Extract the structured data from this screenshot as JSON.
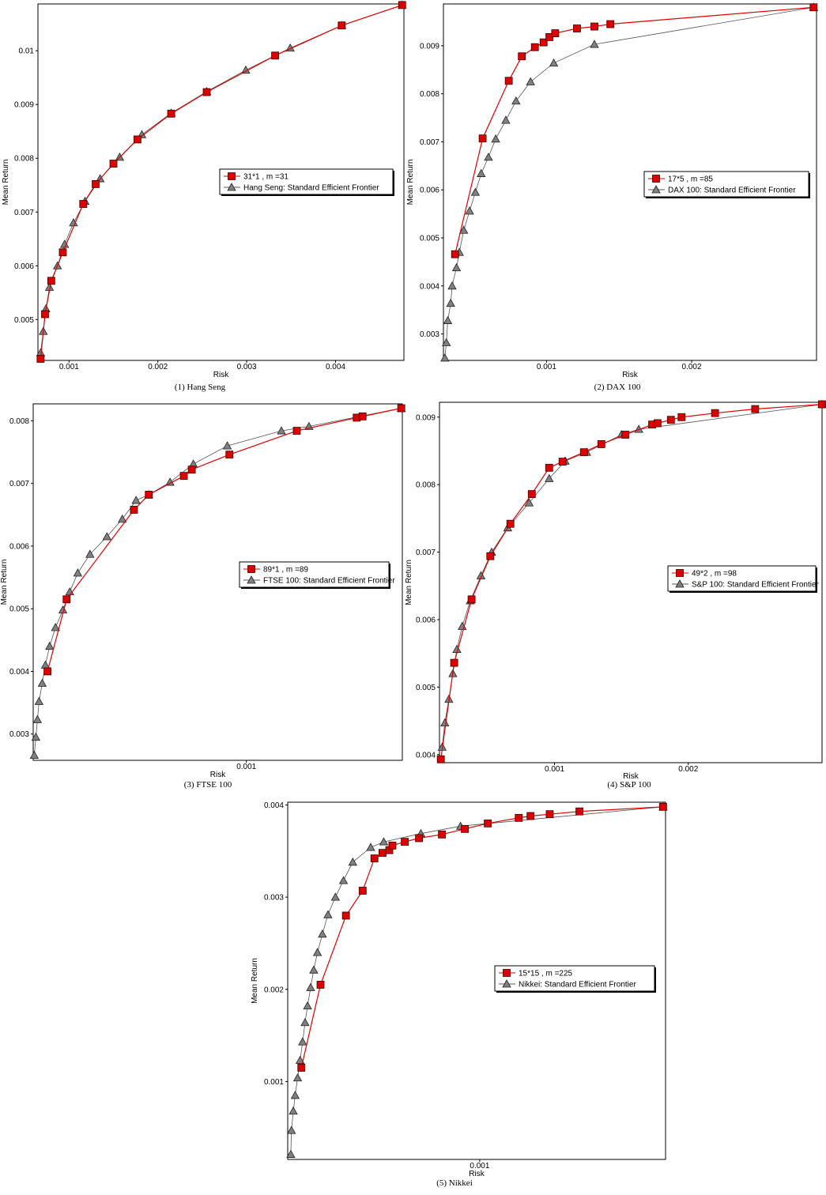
{
  "colors": {
    "optimal": "#dd0000",
    "frontier": "#808080",
    "frontier_line": "#555555"
  },
  "chart_data": [
    {
      "type": "line",
      "caption": "(1) Hang Seng",
      "xlabel": "Risk",
      "ylabel": "Mean Return",
      "xlim": [
        0.00065,
        0.00477
      ],
      "ylim": [
        0.00424,
        0.01087
      ],
      "xticks": [
        {
          "v": 0.001,
          "label": "0.001"
        },
        {
          "v": 0.002,
          "label": "0.002"
        },
        {
          "v": 0.003,
          "label": "0.003"
        },
        {
          "v": 0.004,
          "label": "0.004"
        }
      ],
      "yticks": [
        {
          "v": 0.005,
          "label": "0.005"
        },
        {
          "v": 0.006,
          "label": "0.006"
        },
        {
          "v": 0.007,
          "label": "0.007"
        },
        {
          "v": 0.008,
          "label": "0.008"
        },
        {
          "v": 0.009,
          "label": "0.009"
        },
        {
          "v": 0.01,
          "label": "0.01"
        }
      ],
      "legend_position": "middle-right",
      "series": [
        {
          "name": "31*1 , m =31",
          "marker": "square",
          "x": [
            0.00068,
            0.00073,
            0.0008,
            0.00093,
            0.00116,
            0.0013,
            0.0015,
            0.00177,
            0.00215,
            0.00255,
            0.00332,
            0.00407,
            0.00475
          ],
          "y": [
            0.00427,
            0.0051,
            0.00572,
            0.00625,
            0.00715,
            0.00752,
            0.0079,
            0.00835,
            0.00883,
            0.00923,
            0.00991,
            0.01047,
            0.01085
          ]
        },
        {
          "name": "Hang Seng: Standard Efficient Frontier",
          "marker": "triangle",
          "x": [
            0.00068,
            0.00071,
            0.00074,
            0.00078,
            0.00087,
            0.00095,
            0.00105,
            0.00118,
            0.00135,
            0.00157,
            0.00182,
            0.00215,
            0.00255,
            0.00299,
            0.00349,
            0.00407,
            0.00475
          ],
          "y": [
            0.00438,
            0.00478,
            0.0052,
            0.0056,
            0.006,
            0.0064,
            0.0068,
            0.0072,
            0.00762,
            0.00802,
            0.00844,
            0.00884,
            0.00924,
            0.00964,
            0.01005,
            0.01047,
            0.01085
          ]
        }
      ]
    },
    {
      "type": "line",
      "caption": "(2) DAX 100",
      "xlabel": "Risk",
      "ylabel": "Mean Return",
      "xlim": [
        0.00029,
        0.00286
      ],
      "ylim": [
        0.00245,
        0.00987
      ],
      "xticks": [
        {
          "v": 0.001,
          "label": "0.001"
        },
        {
          "v": 0.002,
          "label": "0.002"
        }
      ],
      "yticks": [
        {
          "v": 0.003,
          "label": "0.003"
        },
        {
          "v": 0.004,
          "label": "0.004"
        },
        {
          "v": 0.005,
          "label": "0.005"
        },
        {
          "v": 0.006,
          "label": "0.006"
        },
        {
          "v": 0.007,
          "label": "0.007"
        },
        {
          "v": 0.008,
          "label": "0.008"
        },
        {
          "v": 0.009,
          "label": "0.009"
        }
      ],
      "legend_position": "middle-right",
      "series": [
        {
          "name": "17*5 , m =85",
          "marker": "square",
          "x": [
            0.00037,
            0.00056,
            0.00074,
            0.00083,
            0.00092,
            0.00098,
            0.00102,
            0.00106,
            0.00121,
            0.00133,
            0.00144,
            0.00284
          ],
          "y": [
            0.00466,
            0.00707,
            0.00827,
            0.00878,
            0.00897,
            0.00907,
            0.00918,
            0.00926,
            0.00936,
            0.0094,
            0.00945,
            0.0098
          ]
        },
        {
          "name": "DAX 100: Standard Efficient Frontier",
          "marker": "triangle",
          "x": [
            0.0003,
            0.00031,
            0.00032,
            0.00034,
            0.00035,
            0.00038,
            0.0004,
            0.00043,
            0.00047,
            0.00051,
            0.00055,
            0.0006,
            0.00065,
            0.00072,
            0.00079,
            0.00089,
            0.00105,
            0.00133,
            0.00284
          ],
          "y": [
            0.0025,
            0.00282,
            0.00328,
            0.00364,
            0.004,
            0.00438,
            0.0047,
            0.00516,
            0.00556,
            0.00595,
            0.00634,
            0.00668,
            0.00706,
            0.00745,
            0.00785,
            0.00825,
            0.00864,
            0.00903,
            0.0098
          ]
        }
      ]
    },
    {
      "type": "line",
      "caption": "(3) FTSE 100",
      "xlabel": "Risk",
      "ylabel": "Mean Return",
      "xlim": [
        0.000398,
        0.001094
      ],
      "ylim": [
        0.00258,
        0.00827
      ],
      "xticks": [
        {
          "v": 0.0008,
          "label": "0.001"
        }
      ],
      "yticks": [
        {
          "v": 0.003,
          "label": "0.003"
        },
        {
          "v": 0.004,
          "label": "0.004"
        },
        {
          "v": 0.005,
          "label": "0.005"
        },
        {
          "v": 0.006,
          "label": "0.006"
        },
        {
          "v": 0.007,
          "label": "0.007"
        },
        {
          "v": 0.008,
          "label": "0.008"
        }
      ],
      "legend_position": "middle-right",
      "series": [
        {
          "name": "89*1 , m =89",
          "marker": "square",
          "x": [
            0.000425,
            0.000461,
            0.000588,
            0.000616,
            0.000682,
            0.000697,
            0.000768,
            0.000895,
            0.001008,
            0.001019,
            0.001092
          ],
          "y": [
            0.004,
            0.00515,
            0.00658,
            0.00682,
            0.00712,
            0.00722,
            0.00746,
            0.00784,
            0.00805,
            0.00807,
            0.0082
          ]
        },
        {
          "name": "FTSE 100: Standard Efficient Frontier",
          "marker": "triangle",
          "x": [
            0.0004,
            0.000403,
            0.000406,
            0.000409,
            0.000415,
            0.000421,
            0.000429,
            0.00044,
            0.000454,
            0.000467,
            0.000482,
            0.000505,
            0.000537,
            0.000566,
            0.000592,
            0.000616,
            0.000656,
            0.0007,
            0.000764,
            0.000866,
            0.000918,
            0.001092
          ],
          "y": [
            0.00266,
            0.00295,
            0.00323,
            0.00352,
            0.00381,
            0.0041,
            0.0044,
            0.0047,
            0.00498,
            0.00527,
            0.00557,
            0.00587,
            0.00615,
            0.00643,
            0.00673,
            0.00682,
            0.00702,
            0.00731,
            0.0076,
            0.00784,
            0.00791,
            0.0082
          ]
        }
      ]
    },
    {
      "type": "line",
      "caption": "(4) S&P 100",
      "xlabel": "Risk",
      "ylabel": "Mean Return",
      "xlim": [
        0.00014,
        0.003
      ],
      "ylim": [
        0.00388,
        0.00922
      ],
      "xticks": [
        {
          "v": 0.001,
          "label": "0.001"
        },
        {
          "v": 0.002,
          "label": "0.002"
        }
      ],
      "yticks": [
        {
          "v": 0.004,
          "label": "0.004"
        },
        {
          "v": 0.005,
          "label": "0.005"
        },
        {
          "v": 0.006,
          "label": "0.006"
        },
        {
          "v": 0.007,
          "label": "0.007"
        },
        {
          "v": 0.008,
          "label": "0.008"
        },
        {
          "v": 0.009,
          "label": "0.009"
        }
      ],
      "legend_position": "middle-right",
      "series": [
        {
          "name": "49*2 , m =98",
          "marker": "square",
          "x": [
            0.00015,
            0.00025,
            0.00038,
            0.00052,
            0.00067,
            0.00083,
            0.00096,
            0.00106,
            0.00122,
            0.00135,
            0.00153,
            0.00173,
            0.00177,
            0.00187,
            0.00195,
            0.0022,
            0.0025,
            0.003
          ],
          "y": [
            0.00393,
            0.00536,
            0.0063,
            0.00694,
            0.00742,
            0.00786,
            0.00825,
            0.00834,
            0.00848,
            0.0086,
            0.00874,
            0.00889,
            0.00891,
            0.00896,
            0.009,
            0.00906,
            0.00912,
            0.00919
          ]
        },
        {
          "name": "S&P 100: Standard Efficient Frontier",
          "marker": "triangle",
          "x": [
            0.00016,
            0.00018,
            0.00021,
            0.00024,
            0.00027,
            0.00031,
            0.00037,
            0.00045,
            0.00053,
            0.00065,
            0.00081,
            0.00096,
            0.00108,
            0.00124,
            0.0015,
            0.00163,
            0.003
          ],
          "y": [
            0.00411,
            0.00447,
            0.00482,
            0.0052,
            0.00556,
            0.0059,
            0.00628,
            0.00665,
            0.007,
            0.00736,
            0.00773,
            0.00809,
            0.00835,
            0.00848,
            0.00874,
            0.00882,
            0.00919
          ]
        }
      ]
    },
    {
      "type": "line",
      "caption": "(5) Nikkei",
      "xlabel": "Risk",
      "ylabel": "Mean Return",
      "xlim": [
        0.000574,
        0.001184
      ],
      "ylim": [
        0.000155,
        0.00403
      ],
      "xticks": [
        {
          "v": 0.000884,
          "label": "0.001"
        }
      ],
      "yticks": [
        {
          "v": 0.001,
          "label": "0.001"
        },
        {
          "v": 0.002,
          "label": "0.002"
        },
        {
          "v": 0.003,
          "label": "0.003"
        },
        {
          "v": 0.004,
          "label": "0.004"
        }
      ],
      "legend_position": "middle-right",
      "series": [
        {
          "name": "15*15 , m =225",
          "marker": "square",
          "x": [
            0.000596,
            0.000627,
            0.000668,
            0.000695,
            0.000714,
            0.000727,
            0.000738,
            0.000743,
            0.000763,
            0.000786,
            0.000823,
            0.00086,
            0.000897,
            0.000947,
            0.000966,
            0.000997,
            0.001045,
            0.00118
          ],
          "y": [
            0.00115,
            0.00205,
            0.0028,
            0.00307,
            0.00342,
            0.00348,
            0.00351,
            0.00356,
            0.0036,
            0.00364,
            0.00368,
            0.00374,
            0.0038,
            0.00386,
            0.00388,
            0.0039,
            0.00393,
            0.00398
          ]
        },
        {
          "name": "Nikkei: Standard Efficient Frontier",
          "marker": "triangle",
          "x": [
            0.000579,
            0.00058,
            0.000583,
            0.000586,
            0.00059,
            0.000594,
            0.000598,
            0.000602,
            0.000606,
            0.000611,
            0.000616,
            0.000622,
            0.00063,
            0.000639,
            0.000651,
            0.000664,
            0.000679,
            0.000708,
            0.000729,
            0.000789,
            0.000853,
            0.00118
          ],
          "y": [
            0.00021,
            0.00047,
            0.00068,
            0.00085,
            0.00104,
            0.00123,
            0.00143,
            0.00164,
            0.00182,
            0.00202,
            0.00221,
            0.0024,
            0.0026,
            0.00281,
            0.003,
            0.00318,
            0.00338,
            0.00354,
            0.0036,
            0.00369,
            0.00377,
            0.00398
          ]
        }
      ]
    }
  ]
}
